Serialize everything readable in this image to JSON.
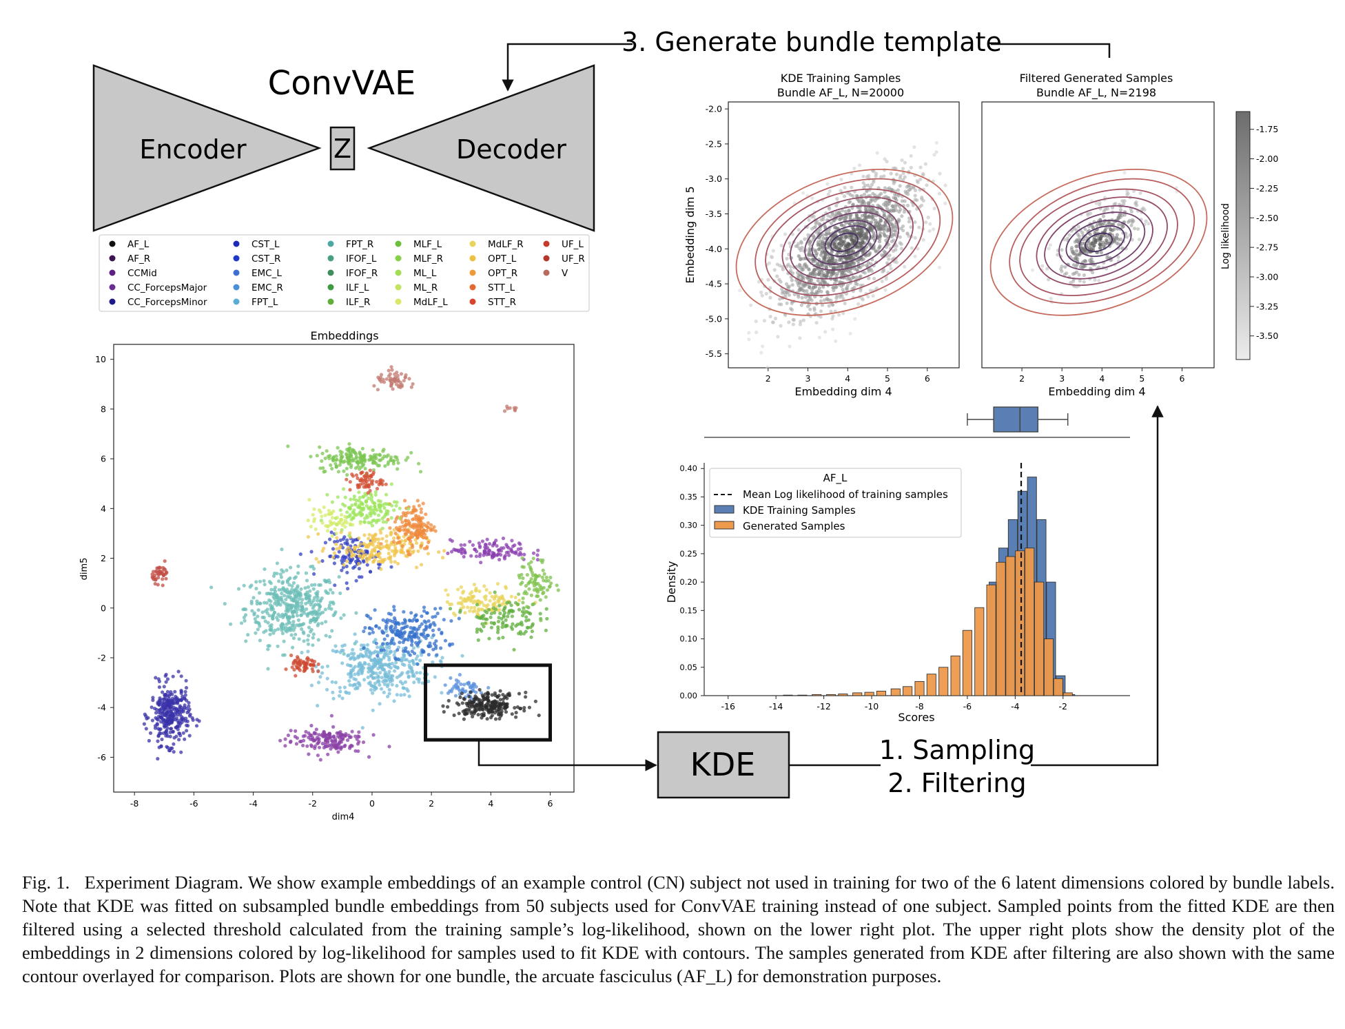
{
  "diagram": {
    "convvae_label": "ConvVAE",
    "encoder_label": "Encoder",
    "z_label": "Z",
    "decoder_label": "Decoder",
    "kde_label": "KDE",
    "step3_label": "3. Generate bundle template",
    "step1_label": "1. Sampling",
    "step2_label": "2. Filtering"
  },
  "legend": {
    "items": [
      {
        "name": "AF_L",
        "color": "#111111"
      },
      {
        "name": "AF_R",
        "color": "#3b1450"
      },
      {
        "name": "CCMid",
        "color": "#5e1f86"
      },
      {
        "name": "CC_ForcepsMajor",
        "color": "#6a2d92"
      },
      {
        "name": "CC_ForcepsMinor",
        "color": "#1f1a8c"
      },
      {
        "name": "CST_L",
        "color": "#1d2bb8"
      },
      {
        "name": "CST_R",
        "color": "#2038c8"
      },
      {
        "name": "EMC_L",
        "color": "#3d6fd0"
      },
      {
        "name": "EMC_R",
        "color": "#4a8fd8"
      },
      {
        "name": "FPT_L",
        "color": "#5aaed6"
      },
      {
        "name": "FPT_R",
        "color": "#4fa7a3"
      },
      {
        "name": "IFOF_L",
        "color": "#4a9e86"
      },
      {
        "name": "IFOF_R",
        "color": "#3e8e5c"
      },
      {
        "name": "ILF_L",
        "color": "#3f9a44"
      },
      {
        "name": "ILF_R",
        "color": "#5fae3c"
      },
      {
        "name": "MLF_L",
        "color": "#6cbf3d"
      },
      {
        "name": "MLF_R",
        "color": "#86d04a"
      },
      {
        "name": "ML_L",
        "color": "#a3dc55"
      },
      {
        "name": "ML_R",
        "color": "#c3e461"
      },
      {
        "name": "MdLF_L",
        "color": "#dbe66a"
      },
      {
        "name": "MdLF_R",
        "color": "#e8d45a"
      },
      {
        "name": "OPT_L",
        "color": "#ecc042"
      },
      {
        "name": "OPT_R",
        "color": "#ec9a3a"
      },
      {
        "name": "STT_L",
        "color": "#e06a30"
      },
      {
        "name": "STT_R",
        "color": "#d8452c"
      },
      {
        "name": "UF_L",
        "color": "#c63a2a"
      },
      {
        "name": "UF_R",
        "color": "#b4372c"
      },
      {
        "name": "V",
        "color": "#b86a5e"
      }
    ]
  },
  "chart_data": [
    {
      "type": "scatter",
      "title": "Embeddings",
      "xlabel": "dim4",
      "ylabel": "dim5",
      "xlim": [
        -8.7,
        6.8
      ],
      "ylim": [
        -7.4,
        10.6
      ],
      "xticks": [
        -8,
        -6,
        -4,
        -2,
        0,
        2,
        4,
        6
      ],
      "yticks": [
        10,
        8,
        6,
        4,
        2,
        0,
        -2,
        -4,
        -6
      ],
      "highlight_box": {
        "x": [
          1.8,
          6.0
        ],
        "y": [
          -5.3,
          -2.3
        ]
      },
      "clusters": [
        {
          "bundle": "FPT_R",
          "color": "#6cbdb7",
          "cx": -2.7,
          "cy": 0.0,
          "sx": 1.3,
          "sy": 1.2,
          "n": 420
        },
        {
          "bundle": "FPT_L",
          "color": "#77bcd8",
          "cx": 0.2,
          "cy": -2.4,
          "sx": 1.5,
          "sy": 1.0,
          "n": 360
        },
        {
          "bundle": "EMC_R",
          "color": "#3470cc",
          "cx": 1.2,
          "cy": -1.0,
          "sx": 1.1,
          "sy": 0.8,
          "n": 200
        },
        {
          "bundle": "CST_L",
          "color": "#3340c2",
          "cx": -0.6,
          "cy": 2.1,
          "sx": 0.8,
          "sy": 0.7,
          "n": 110
        },
        {
          "bundle": "CC_ForcepsMinor",
          "color": "#3a32a8",
          "cx": -6.8,
          "cy": -4.3,
          "sx": 0.55,
          "sy": 1.0,
          "n": 300
        },
        {
          "bundle": "OPT_L",
          "color": "#f0c64c",
          "cx": 0.2,
          "cy": 2.4,
          "sx": 1.3,
          "sy": 0.6,
          "n": 190
        },
        {
          "bundle": "OPT_R",
          "color": "#ef8a3c",
          "cx": 1.4,
          "cy": 3.3,
          "sx": 0.55,
          "sy": 0.8,
          "n": 150
        },
        {
          "bundle": "MLF_L",
          "color": "#7cc653",
          "cx": -0.4,
          "cy": 6.0,
          "sx": 1.2,
          "sy": 0.4,
          "n": 170
        },
        {
          "bundle": "ML_L",
          "color": "#9ce45a",
          "cx": -0.2,
          "cy": 4.0,
          "sx": 0.9,
          "sy": 0.6,
          "n": 140
        },
        {
          "bundle": "STT_R",
          "color": "#d14f33",
          "cx": -0.2,
          "cy": 5.1,
          "sx": 0.45,
          "sy": 0.35,
          "n": 60
        },
        {
          "bundle": "ML_R",
          "color": "#d4ec6a",
          "cx": -1.4,
          "cy": 3.5,
          "sx": 0.6,
          "sy": 0.4,
          "n": 50
        },
        {
          "bundle": "CC_ForcepsMajor",
          "color": "#8a3fa6",
          "cx": -1.6,
          "cy": -5.3,
          "sx": 1.1,
          "sy": 0.45,
          "n": 150
        },
        {
          "bundle": "CCMid",
          "color": "#8b3fb0",
          "cx": 4.0,
          "cy": 2.3,
          "sx": 1.1,
          "sy": 0.35,
          "n": 110
        },
        {
          "bundle": "MdLF_R",
          "color": "#e8d45a",
          "cx": 3.8,
          "cy": 0.3,
          "sx": 1.1,
          "sy": 0.5,
          "n": 110
        },
        {
          "bundle": "IFOF_R",
          "color": "#5fae3c",
          "cx": 4.4,
          "cy": -0.4,
          "sx": 1.0,
          "sy": 0.7,
          "n": 110
        },
        {
          "bundle": "MLF_R",
          "color": "#7ec24a",
          "cx": 5.5,
          "cy": 1.0,
          "sx": 0.5,
          "sy": 0.8,
          "n": 80
        },
        {
          "bundle": "UF_L",
          "color": "#cf4a32",
          "cx": -2.3,
          "cy": -2.3,
          "sx": 0.35,
          "sy": 0.3,
          "n": 60
        },
        {
          "bundle": "UF_R",
          "color": "#c24d45",
          "cx": -7.1,
          "cy": 1.4,
          "sx": 0.25,
          "sy": 0.3,
          "n": 40
        },
        {
          "bundle": "V",
          "color": "#c27a70",
          "cx": 0.8,
          "cy": 9.1,
          "sx": 0.6,
          "sy": 0.3,
          "n": 55
        },
        {
          "bundle": "V",
          "color": "#c27a70",
          "cx": 4.6,
          "cy": 8.0,
          "sx": 0.3,
          "sy": 0.1,
          "n": 8
        },
        {
          "bundle": "EMC_L",
          "color": "#5a90dc",
          "cx": 3.1,
          "cy": -3.3,
          "sx": 0.6,
          "sy": 0.4,
          "n": 50
        },
        {
          "bundle": "AF_L",
          "color": "#2b2b2b",
          "cx": 3.9,
          "cy": -3.9,
          "sx": 0.9,
          "sy": 0.4,
          "n": 220
        }
      ]
    },
    {
      "type": "scatter",
      "title": "KDE Training Samples",
      "subtitle": "Bundle AF_L, N=20000",
      "xlabel": "Embedding dim 4",
      "ylabel": "Embedding dim 5",
      "xlim": [
        1.0,
        6.8
      ],
      "ylim": [
        -5.7,
        -1.9
      ],
      "xticks": [
        2,
        3,
        4,
        5,
        6
      ],
      "yticks": [
        -2.0,
        -2.5,
        -3.0,
        -3.5,
        -4.0,
        -4.5,
        -5.0,
        -5.5
      ],
      "center": [
        4.0,
        -3.95
      ],
      "spread": [
        0.9,
        0.5
      ],
      "correlation": 0.65
    },
    {
      "type": "scatter",
      "title": "Filtered Generated Samples",
      "subtitle": "Bundle AF_L, N=2198",
      "xlabel": "Embedding dim 4",
      "ylabel": "",
      "xlim": [
        1.0,
        6.8
      ],
      "ylim": [
        -5.7,
        -1.9
      ],
      "xticks": [
        2,
        3,
        4,
        5,
        6
      ],
      "center": [
        3.9,
        -3.9
      ],
      "spread": [
        0.55,
        0.3
      ],
      "correlation": 0.65
    },
    {
      "type": "colorbar",
      "label": "Log likelihood",
      "range": [
        -3.7,
        -1.6
      ],
      "ticks": [
        "-1.75",
        "-2.00",
        "-2.25",
        "-2.50",
        "-2.75",
        "-3.00",
        "-3.25",
        "-3.50"
      ]
    },
    {
      "type": "bar",
      "title": "AF_L",
      "xlabel": "Scores",
      "ylabel": "Density",
      "xlim": [
        -17,
        0.8
      ],
      "ylim": [
        0,
        0.41
      ],
      "xticks": [
        -16,
        -14,
        -12,
        -10,
        -8,
        -6,
        -4,
        -2
      ],
      "yticks": [
        "0.00",
        "0.05",
        "0.10",
        "0.15",
        "0.20",
        "0.25",
        "0.30",
        "0.35",
        "0.40"
      ],
      "bin_width": 0.38,
      "mean_line": -3.75,
      "legend_labels": [
        "Mean Log likelihood of training samples",
        "KDE Training Samples",
        "Generated Samples"
      ],
      "series": [
        {
          "name": "KDE Training Samples",
          "color": "#5a7fb4",
          "x": [
            -4.9,
            -4.5,
            -4.1,
            -3.7,
            -3.3,
            -2.9,
            -2.5,
            -2.1,
            -1.7
          ],
          "values": [
            0.2,
            0.26,
            0.31,
            0.36,
            0.385,
            0.31,
            0.2,
            0.035,
            0.002
          ]
        },
        {
          "name": "Generated Samples",
          "color": "#ee9a4c",
          "x": [
            -13.5,
            -12.9,
            -12.3,
            -11.7,
            -11.2,
            -10.6,
            -10.1,
            -9.6,
            -9.0,
            -8.5,
            -8.0,
            -7.5,
            -7.0,
            -6.5,
            -6.0,
            -5.5,
            -5.0,
            -4.6,
            -4.2,
            -3.8,
            -3.4,
            -3.0,
            -2.6,
            -2.2,
            -1.8
          ],
          "values": [
            0.001,
            0.001,
            0.002,
            0.002,
            0.003,
            0.005,
            0.006,
            0.008,
            0.012,
            0.016,
            0.025,
            0.038,
            0.05,
            0.07,
            0.115,
            0.155,
            0.195,
            0.235,
            0.245,
            0.255,
            0.26,
            0.2,
            0.1,
            0.03,
            0.005
          ]
        }
      ],
      "boxplot": {
        "whisker_low": -6.0,
        "q1": -4.9,
        "median": -3.8,
        "q3": -3.05,
        "whisker_high": -1.8
      }
    }
  ],
  "caption": {
    "fig_label": "Fig. 1.",
    "text": "Experiment Diagram. We show example embeddings of an example control (CN) subject not used in training for two of the 6 latent dimensions colored by bundle labels. Note that KDE was fitted on subsampled bundle embeddings from 50 subjects used for ConvVAE training instead of one subject. Sampled points from the fitted KDE are then filtered using a selected threshold calculated from the training sample’s log-likelihood, shown on the lower right plot. The upper right plots show the density plot of the embeddings in 2 dimensions colored by log-likelihood for samples used to fit KDE with contours. The samples generated from KDE after filtering are also shown with the same contour overlayed for comparison. Plots are shown for one bundle, the arcuate fasciculus (AF_L) for demonstration purposes."
  }
}
